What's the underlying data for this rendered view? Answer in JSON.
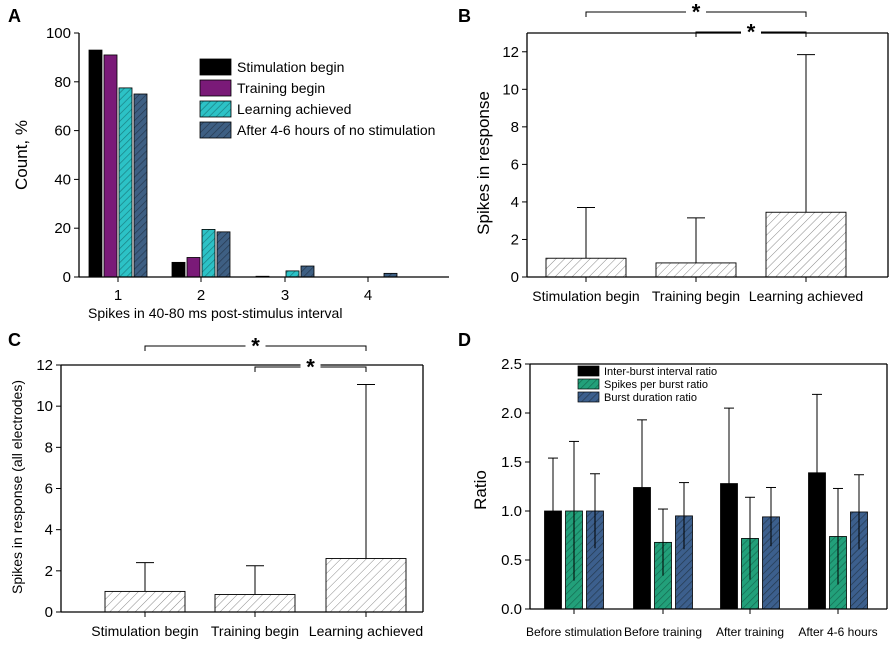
{
  "colors": {
    "black": "#000000",
    "purple": "#7a1a78",
    "teal": "#2cc2c6",
    "steel": "#3e5f83",
    "green": "#22a07a",
    "navy": "#3c5f8d",
    "hatch_bg": "#ffffff",
    "hatch_line": "#777777"
  },
  "chart_data": [
    {
      "id": "A",
      "panel_label": "A",
      "type": "bar",
      "xlabel": "Spikes in 40-80 ms post-stimulus interval",
      "ylabel": "Count, %",
      "ylim": [
        0,
        100
      ],
      "yticks": [
        0,
        20,
        40,
        60,
        80,
        100
      ],
      "categories": [
        "1",
        "2",
        "3",
        "4"
      ],
      "legend_position": "top-right",
      "series": [
        {
          "name": "Stimulation begin",
          "color": "black",
          "pattern": "solid",
          "values": [
            93,
            6,
            0.3,
            0
          ]
        },
        {
          "name": "Training begin",
          "color": "purple",
          "pattern": "solid",
          "values": [
            91,
            8,
            0,
            0
          ]
        },
        {
          "name": "Learning achieved",
          "color": "teal",
          "pattern": "hatch",
          "values": [
            77.5,
            19.5,
            2.5,
            0
          ]
        },
        {
          "name": "After 4-6 hours of no stimulation",
          "color": "steel",
          "pattern": "hatch",
          "values": [
            75,
            18.5,
            4.5,
            1.5
          ]
        }
      ]
    },
    {
      "id": "B",
      "panel_label": "B",
      "type": "bar",
      "xlabel": "",
      "ylabel": "Spikes in response",
      "ylim": [
        0,
        13
      ],
      "yticks": [
        0,
        2,
        4,
        6,
        8,
        10,
        12
      ],
      "categories": [
        "Stimulation begin",
        "Training begin",
        "Learning achieved"
      ],
      "values": [
        1.0,
        0.75,
        3.45
      ],
      "errors": [
        2.7,
        2.4,
        8.4
      ],
      "significance": [
        {
          "from": 0,
          "to": 2,
          "label": "*"
        },
        {
          "from": 1,
          "to": 2,
          "label": "*"
        }
      ]
    },
    {
      "id": "C",
      "panel_label": "C",
      "type": "bar",
      "xlabel": "",
      "ylabel": "Spikes in response (all electrodes)",
      "ylim": [
        0,
        12
      ],
      "yticks": [
        0,
        2,
        4,
        6,
        8,
        10,
        12
      ],
      "categories": [
        "Stimulation begin",
        "Training begin",
        "Learning achieved"
      ],
      "values": [
        1.0,
        0.85,
        2.6
      ],
      "errors": [
        1.4,
        1.4,
        8.45
      ],
      "significance": [
        {
          "from": 0,
          "to": 2,
          "label": "*"
        },
        {
          "from": 1,
          "to": 2,
          "label": "*"
        }
      ]
    },
    {
      "id": "D",
      "panel_label": "D",
      "type": "bar",
      "xlabel": "",
      "ylabel": "Ratio",
      "ylim": [
        0,
        2.5
      ],
      "yticks": [
        "0.0",
        "0.5",
        "1.0",
        "1.5",
        "2.0",
        "2.5"
      ],
      "categories": [
        "Before stimulation",
        "Before training",
        "After training",
        "After 4-6 hours"
      ],
      "legend_position": "top-left",
      "series": [
        {
          "name": "Inter-burst interval ratio",
          "color": "black",
          "pattern": "solid",
          "values": [
            1.0,
            1.24,
            1.28,
            1.39
          ],
          "errors": [
            0.54,
            0.69,
            0.77,
            0.8
          ]
        },
        {
          "name": "Spikes per burst ratio",
          "color": "green",
          "pattern": "hatch",
          "values": [
            1.0,
            0.68,
            0.72,
            0.74
          ],
          "errors": [
            0.71,
            0.34,
            0.42,
            0.49
          ]
        },
        {
          "name": "Burst duration ratio",
          "color": "navy",
          "pattern": "hatch",
          "values": [
            1.0,
            0.95,
            0.94,
            0.99
          ],
          "errors": [
            0.38,
            0.34,
            0.3,
            0.38
          ]
        }
      ]
    }
  ]
}
